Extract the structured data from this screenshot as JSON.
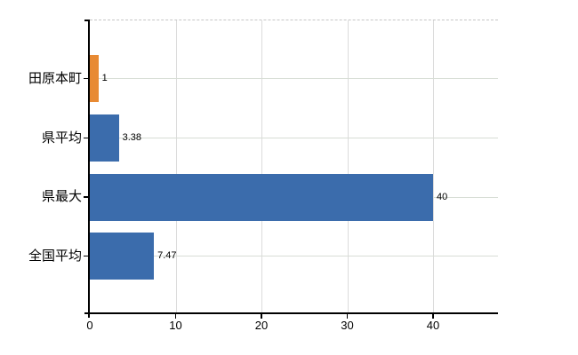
{
  "chart_data": {
    "type": "bar",
    "orientation": "horizontal",
    "title": "",
    "xlabel": "",
    "ylabel": "",
    "categories": [
      "田原本町",
      "県平均",
      "県最大",
      "全国平均"
    ],
    "values": [
      1,
      3.38,
      40,
      7.47
    ],
    "value_labels": [
      "1",
      "3.38",
      "40",
      "7.47"
    ],
    "series": [
      {
        "name": "",
        "values": [
          1,
          3.38,
          40,
          7.47
        ]
      }
    ],
    "x_ticks": [
      0,
      10,
      20,
      30,
      40
    ],
    "x_tick_labels": [
      "0",
      "10",
      "20",
      "30",
      "40"
    ],
    "xlim": [
      0,
      47.5
    ],
    "grid": true,
    "legend": false,
    "bar_colors": [
      "#e88a33",
      "#3b6cac",
      "#3b6cac",
      "#3b6cac"
    ]
  },
  "colors": {
    "highlight_bar": "#e88a33",
    "default_bar": "#3b6cac",
    "h_gridline": "#d7ddd5",
    "v_gridline": "#dcdcdc",
    "top_border_dashed": "#c6c6c6",
    "axis": "#000000",
    "text": "#000000",
    "background": "#ffffff"
  }
}
